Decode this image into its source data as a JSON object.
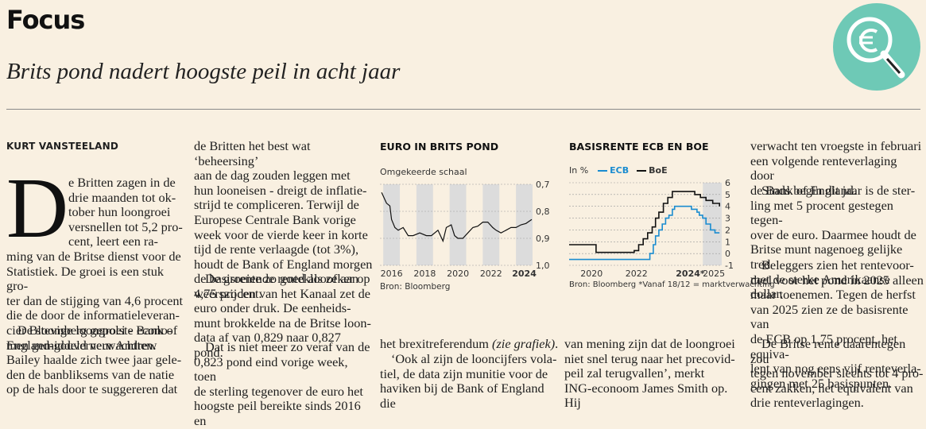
{
  "header": {
    "section": "Focus",
    "headline": "Brits pond nadert hoogste peil in acht jaar"
  },
  "article": {
    "byline": "KURT VANSTEELAND",
    "dropcap": "D",
    "col1_lines_after_cap": [
      "e Britten zagen in de",
      "drie maanden tot ok-",
      "tober hun loongroei",
      "versnellen tot 5,2 pro-",
      "cent, leert een ra-"
    ],
    "col1_rest": [
      "ming van de Britse dienst voor de",
      "Statistiek. De groei is een stuk gro-",
      "ter dan de stijging van 4,6 procent",
      "die de door de informatieleveran-",
      "cier Bloomberg gepolste econo-",
      "men gemiddeld verwachtten."
    ],
    "col1_p2": [
      "De stevige loongroei - Bank of",
      "England-gouverneur Andrew",
      "Bailey haalde zich twee jaar gele-",
      "den de banbliksems van de natie",
      "op de hals door te suggereren dat"
    ],
    "col2_p1": [
      "de Britten het best wat ‘beheersing’",
      "aan de dag zouden leggen met",
      "hun looneisen - dreigt de inflatie-",
      "strijd te compliceren. Terwijl de",
      "Europese Centrale Bank vorige",
      "week voor de vierde keer in korte",
      "tijd de rente verlaagde (tot 3%),",
      "houdt de Bank of England morgen",
      "de basisrente zo goed als zeker op",
      "4,75 procent."
    ],
    "col2_p2": [
      "De groeiende renteklooof aan",
      "weerszijden van het Kanaal zet de",
      "euro onder druk. De eenheids-",
      "munt brokkelde na de Britse loon-",
      "data af van 0,829 naar 0,827 pond."
    ],
    "col2_p3": [
      "Dat is niet meer zo veraf van de",
      "0,823 pond eind vorige week, toen",
      "de sterling tegenover de euro het",
      "hoogste peil bereikte sinds 2016 en"
    ],
    "col3_line1": "het brexitreferendum",
    "col3_line1_italic": "(zie grafiek)",
    "col3_line1_end": ".",
    "col3_p2": [
      "‘Ook al zijn de looncijfers vola-",
      "tiel, de data zijn munitie voor de",
      "haviken bij de Bank of England die"
    ],
    "col4_lines": [
      "van mening zijn dat de loongroei",
      "niet snel terug naar het precovid-",
      "peil zal terugvallen’, merkt",
      "ING-econoom James Smith op. Hij"
    ],
    "col5_p1": [
      "verwacht ten vroegste in februari",
      "een volgende renteverlaging door",
      "de Bank of England."
    ],
    "col5_p2": [
      "Sinds begin dit jaar is de ster-",
      "ling met 5 procent gestegen tegen-",
      "over de euro. Daarmee houdt de",
      "Britse munt nagenoeg gelijke tred",
      "met de sterke Amerikaanse dollar."
    ],
    "col5_p3": [
      "Beleggers zien het rentevoor-",
      "deel voor het pond in 2025 alleen",
      "maar toenemen. Tegen de herfst",
      "van 2025 zien ze de basisrente van",
      "de ECB op 1,75 procent, het equiva-",
      "lent van nog eens vijf renteverla-",
      "gingen met 25 basispunten."
    ],
    "col5_p4": [
      "De Britse rente daarentegen zou",
      "tegen november slechts tot 4 pro-",
      "cent zakken, het equivalent van",
      "drie renteverlagingen."
    ]
  },
  "chart_data": [
    {
      "type": "line",
      "title": "EURO IN BRITS POND",
      "subtitle": "Omgekeerde schaal",
      "source": "Bron: Bloomberg",
      "x_ticks": [
        "2016",
        "2018",
        "2020",
        "2022",
        "2024"
      ],
      "y_ticks": [
        "0,7",
        "0,8",
        "0,9",
        "1,0"
      ],
      "ylim": [
        0.7,
        1.0
      ],
      "y_inverted": true,
      "series": [
        {
          "x": [
            2015.9,
            2016.2,
            2016.4,
            2016.5,
            2016.7,
            2016.9,
            2017.2,
            2017.5,
            2017.8,
            2018.2,
            2018.6,
            2018.9,
            2019.3,
            2019.6,
            2019.8,
            2020.1,
            2020.3,
            2020.5,
            2020.8,
            2021.1,
            2021.4,
            2021.7,
            2022.0,
            2022.3,
            2022.6,
            2022.8,
            2023.1,
            2023.4,
            2023.7,
            2024.0,
            2024.3,
            2024.6,
            2024.95
          ],
          "y": [
            0.73,
            0.77,
            0.78,
            0.83,
            0.86,
            0.87,
            0.86,
            0.89,
            0.89,
            0.88,
            0.89,
            0.89,
            0.87,
            0.91,
            0.86,
            0.85,
            0.89,
            0.9,
            0.9,
            0.88,
            0.86,
            0.855,
            0.84,
            0.84,
            0.86,
            0.87,
            0.88,
            0.87,
            0.86,
            0.86,
            0.85,
            0.845,
            0.83
          ]
        }
      ]
    },
    {
      "type": "line",
      "title": "BASISRENTE ECB EN BOE",
      "y_unit": "In %",
      "source": "Bron: Bloomberg *Vanaf 18/12 = marktverwachting",
      "x_ticks": [
        "2020",
        "2022",
        "2024*",
        "2025"
      ],
      "y_ticks": [
        "6",
        "5",
        "4",
        "3",
        "2",
        "1",
        "0",
        "-1"
      ],
      "ylim": [
        -1,
        6
      ],
      "series": [
        {
          "name": "ECB",
          "color": "#1a8cd0",
          "x": [
            2019.0,
            2022.5,
            2022.6,
            2022.75,
            2022.85,
            2023.0,
            2023.15,
            2023.3,
            2023.45,
            2023.6,
            2023.7,
            2024.45,
            2024.7,
            2024.8,
            2024.95,
            2025.1,
            2025.3,
            2025.5,
            2025.7
          ],
          "y": [
            -0.5,
            -0.5,
            0.0,
            0.75,
            1.5,
            2.0,
            2.5,
            3.0,
            3.25,
            3.75,
            4.0,
            3.75,
            3.5,
            3.25,
            3.0,
            2.5,
            2.0,
            1.75,
            1.75
          ]
        },
        {
          "name": "BoE",
          "color": "#111111",
          "x": [
            2019.0,
            2020.2,
            2021.9,
            2022.1,
            2022.3,
            2022.5,
            2022.7,
            2022.85,
            2023.0,
            2023.2,
            2023.4,
            2023.6,
            2024.6,
            2024.85,
            2025.1,
            2025.4,
            2025.7
          ],
          "y": [
            0.75,
            0.1,
            0.25,
            0.75,
            1.25,
            1.75,
            2.25,
            3.0,
            3.5,
            4.25,
            4.75,
            5.25,
            5.0,
            4.75,
            4.5,
            4.25,
            4.0
          ]
        }
      ]
    }
  ]
}
